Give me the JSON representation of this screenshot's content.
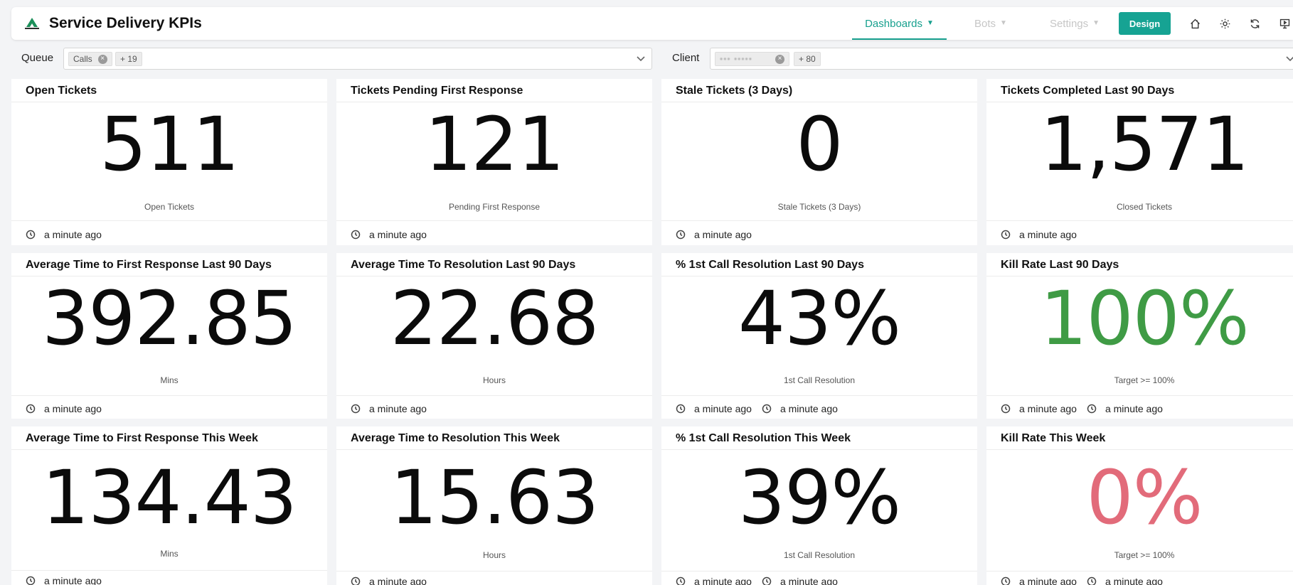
{
  "header": {
    "title": "Service Delivery KPIs",
    "nav": [
      {
        "label": "Dashboards",
        "active": true
      },
      {
        "label": "Bots",
        "active": false
      },
      {
        "label": "Settings",
        "active": false
      }
    ],
    "design_label": "Design",
    "icons": [
      "home-icon",
      "gear-icon",
      "refresh-icon",
      "presentation-icon"
    ],
    "accent_color": "#17a08e"
  },
  "filters": {
    "queue": {
      "label": "Queue",
      "chip": "Calls",
      "more": "+ 19"
    },
    "client": {
      "label": "Client",
      "chip": "••• •••••",
      "more": "+ 80"
    }
  },
  "cards": [
    {
      "title": "Open Tickets",
      "value": "511",
      "sub": "Open Tickets",
      "timestamps": [
        "a minute ago"
      ]
    },
    {
      "title": "Tickets Pending First Response",
      "value": "121",
      "sub": "Pending First Response",
      "timestamps": [
        "a minute ago"
      ]
    },
    {
      "title": "Stale Tickets (3 Days)",
      "value": "0",
      "sub": "Stale Tickets (3 Days)",
      "timestamps": [
        "a minute ago"
      ]
    },
    {
      "title": "Tickets Completed Last 90 Days",
      "value": "1,571",
      "sub": "Closed Tickets",
      "timestamps": [
        "a minute ago"
      ]
    },
    {
      "title": "Average Time to First Response Last 90 Days",
      "value": "392.85",
      "sub": "Mins",
      "timestamps": [
        "a minute ago"
      ]
    },
    {
      "title": "Average Time To Resolution Last 90 Days",
      "value": "22.68",
      "sub": "Hours",
      "timestamps": [
        "a minute ago"
      ]
    },
    {
      "title": "% 1st Call Resolution Last 90 Days",
      "value": "43%",
      "sub": "1st Call Resolution",
      "timestamps": [
        "a minute ago",
        "a minute ago"
      ]
    },
    {
      "title": "Kill Rate Last 90 Days",
      "value": "100%",
      "sub": "Target >= 100%",
      "timestamps": [
        "a minute ago",
        "a minute ago"
      ],
      "value_color": "#3f9b45"
    },
    {
      "title": "Average Time to First Response This Week",
      "value": "134.43",
      "sub": "Mins",
      "timestamps": [
        "a minute ago"
      ]
    },
    {
      "title": "Average Time to Resolution This Week",
      "value": "15.63",
      "sub": "Hours",
      "timestamps": [
        "a minute ago"
      ]
    },
    {
      "title": "% 1st Call Resolution This Week",
      "value": "39%",
      "sub": "1st Call Resolution",
      "timestamps": [
        "a minute ago",
        "a minute ago"
      ]
    },
    {
      "title": "Kill Rate This Week",
      "value": "0%",
      "sub": "Target >= 100%",
      "timestamps": [
        "a minute ago",
        "a minute ago"
      ],
      "value_color": "#e26b7a"
    }
  ]
}
